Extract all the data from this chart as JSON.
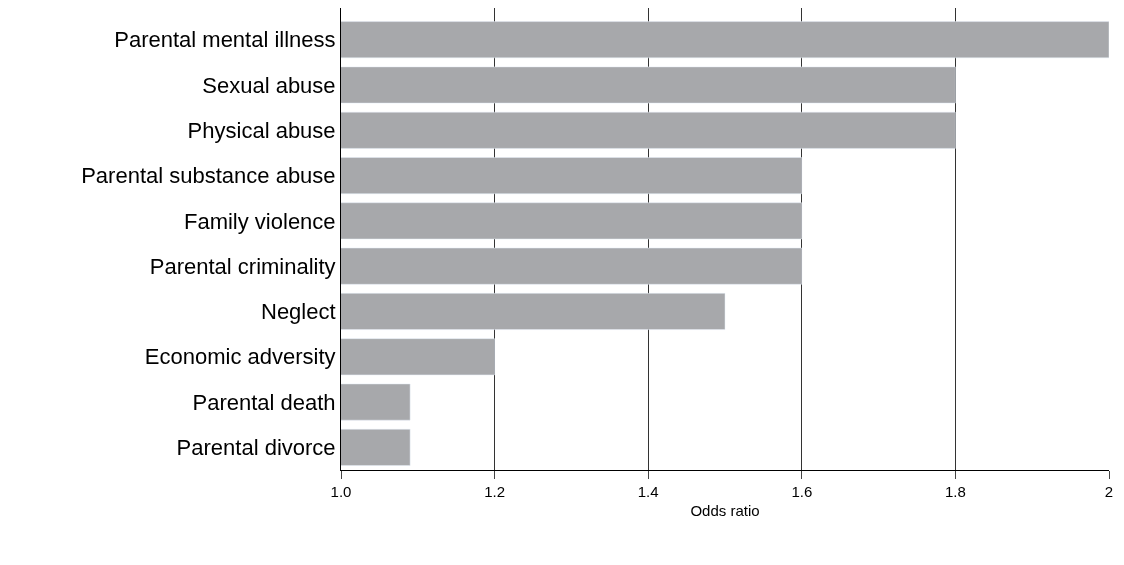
{
  "chart_data": {
    "type": "bar",
    "orientation": "horizontal",
    "xlabel": "Odds ratio",
    "categories": [
      "Parental mental illness",
      "Sexual abuse",
      "Physical abuse",
      "Parental substance abuse",
      "Family violence",
      "Parental criminality",
      "Neglect",
      "Economic adversity",
      "Parental death",
      "Parental divorce"
    ],
    "values": [
      2,
      1.8,
      1.8,
      1.6,
      1.6,
      1.6,
      1.5,
      1.2,
      1.09,
      1.09
    ],
    "color": "#a7a8ab",
    "xlim": [
      1,
      2
    ],
    "xticks": [
      {
        "value": 1,
        "label": "1.0"
      },
      {
        "value": 1.2,
        "label": "1.2"
      },
      {
        "value": 1.4,
        "label": "1.4"
      },
      {
        "value": 1.6,
        "label": "1.6"
      },
      {
        "value": 1.8,
        "label": "1.8"
      },
      2
    ],
    "grid": "x"
  }
}
